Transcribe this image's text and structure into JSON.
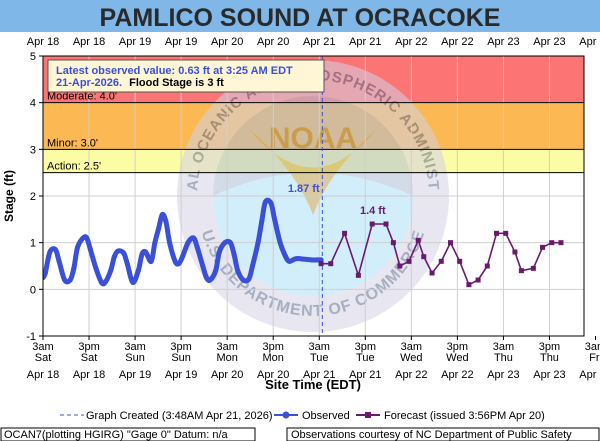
{
  "chart_data": {
    "type": "line",
    "title": "PAMLICO SOUND AT OCRACOKE",
    "xlabel": "Site Time (EDT)",
    "ylabel": "Stage (ft)",
    "ylim": [
      -1,
      5
    ],
    "y_ticks": [
      "-1",
      "0",
      "1",
      "2",
      "3",
      "4",
      "5"
    ],
    "grid": true,
    "x_day_range": [
      18.125,
      24.0
    ],
    "x_ticks": [
      {
        "day": 18.125,
        "time": "3am",
        "weekday": "Sat",
        "date": "Apr 18"
      },
      {
        "day": 18.625,
        "time": "3pm",
        "weekday": "Sat",
        "date": "Apr 18"
      },
      {
        "day": 19.125,
        "time": "3am",
        "weekday": "Sun",
        "date": "Apr 19"
      },
      {
        "day": 19.625,
        "time": "3pm",
        "weekday": "Sun",
        "date": "Apr 19"
      },
      {
        "day": 20.125,
        "time": "3am",
        "weekday": "Mon",
        "date": "Apr 20"
      },
      {
        "day": 20.625,
        "time": "3pm",
        "weekday": "Mon",
        "date": "Apr 20"
      },
      {
        "day": 21.125,
        "time": "3am",
        "weekday": "Tue",
        "date": "Apr 21"
      },
      {
        "day": 21.625,
        "time": "3pm",
        "weekday": "Tue",
        "date": "Apr 21"
      },
      {
        "day": 22.125,
        "time": "3am",
        "weekday": "Wed",
        "date": "Apr 22"
      },
      {
        "day": 22.625,
        "time": "3pm",
        "weekday": "Wed",
        "date": "Apr 22"
      },
      {
        "day": 23.125,
        "time": "3am",
        "weekday": "Thu",
        "date": "Apr 23"
      },
      {
        "day": 23.625,
        "time": "3pm",
        "weekday": "Thu",
        "date": "Apr 23"
      },
      {
        "day": 24.125,
        "time": "3am",
        "weekday": "Fri",
        "date": "Apr 24"
      }
    ],
    "flood_categories": [
      {
        "label": "Action: 2.5'",
        "from": 2.5,
        "to": 3.0,
        "color": "#fcfca4"
      },
      {
        "label": "Minor: 3.0'",
        "from": 3.0,
        "to": 4.0,
        "color": "#fcb852"
      },
      {
        "label": "Moderate: 4.0'",
        "from": 4.0,
        "to": 5.0,
        "color": "#fc7474"
      }
    ],
    "info_box": {
      "line1": "Latest observed value: 0.63 ft at 3:25 AM EDT",
      "line2": "21-Apr-2026.",
      "line2_bold": "Flood Stage is 3 ft"
    },
    "annotations": [
      {
        "text": "1.87 ft",
        "series": "observed",
        "day": 21.0,
        "value": 1.87,
        "color": "#3a50d8"
      },
      {
        "text": "1.4 ft",
        "series": "forecast",
        "day": 21.75,
        "value": 1.4,
        "color": "#6a1a6e"
      }
    ],
    "graph_created_day": 21.1583,
    "series": [
      {
        "name": "Observed",
        "color": "#3a50d8",
        "x": [
          18.125,
          18.15,
          18.2,
          18.26,
          18.3,
          18.36,
          18.42,
          18.46,
          18.5,
          18.56,
          18.6,
          18.64,
          18.7,
          18.76,
          18.8,
          18.86,
          18.9,
          18.94,
          19.0,
          19.04,
          19.1,
          19.16,
          19.2,
          19.24,
          19.3,
          19.34,
          19.38,
          19.42,
          19.46,
          19.5,
          19.56,
          19.6,
          19.64,
          19.7,
          19.76,
          19.8,
          19.86,
          19.9,
          19.94,
          20.0,
          20.04,
          20.1,
          20.16,
          20.2,
          20.24,
          20.3,
          20.36,
          20.4,
          20.46,
          20.5,
          20.54,
          20.6,
          20.64,
          20.7,
          20.76,
          20.8,
          20.86,
          20.9,
          20.94,
          21.0,
          21.04,
          21.1,
          21.145
        ],
        "y": [
          0.25,
          0.35,
          0.8,
          0.85,
          0.6,
          0.2,
          0.2,
          0.45,
          0.9,
          1.1,
          1.1,
          0.85,
          0.45,
          0.15,
          0.15,
          0.4,
          0.7,
          0.82,
          0.78,
          0.55,
          0.15,
          0.4,
          0.75,
          0.8,
          0.6,
          1.0,
          1.3,
          1.6,
          1.45,
          1.0,
          0.6,
          0.55,
          0.7,
          1.0,
          1.1,
          0.9,
          0.5,
          0.25,
          0.2,
          0.4,
          0.8,
          1.0,
          1.0,
          0.75,
          0.4,
          0.2,
          0.22,
          0.5,
          1.0,
          1.45,
          1.87,
          1.85,
          1.5,
          1.0,
          0.7,
          0.6,
          0.65,
          0.66,
          0.65,
          0.64,
          0.63,
          0.63,
          0.63
        ]
      },
      {
        "name": "Forecast",
        "color": "#6a1a6e",
        "x": [
          21.145,
          21.25,
          21.4,
          21.55,
          21.7,
          21.85,
          21.93,
          22.0,
          22.1,
          22.2,
          22.26,
          22.35,
          22.45,
          22.55,
          22.65,
          22.75,
          22.85,
          22.95,
          23.05,
          23.15,
          23.25,
          23.32,
          23.45,
          23.55,
          23.65,
          23.75
        ],
        "y": [
          0.55,
          0.55,
          1.2,
          0.3,
          1.4,
          1.4,
          1.0,
          0.5,
          0.6,
          1.05,
          0.7,
          0.35,
          0.6,
          1.0,
          0.6,
          0.1,
          0.2,
          0.5,
          1.2,
          1.2,
          0.8,
          0.4,
          0.45,
          0.9,
          1.0,
          1.0
        ]
      }
    ]
  },
  "legend": {
    "graph_created": "Graph Created (3:48AM Apr 21, 2026)",
    "observed": "Observed",
    "forecast": "Forecast (issued 3:56PM Apr 20)"
  },
  "footer": {
    "left": "OCAN7(plotting HGIRG) \"Gage 0\" Datum: n/a",
    "right": "Observations courtesy of NC Department of Public Safety"
  },
  "watermark": {
    "ring_top": "NATIONAL OCEANIC AND ATMOSPHERIC ADMINISTRATION",
    "ring_bottom": "U.S. DEPARTMENT OF COMMERCE",
    "center": "NOAA"
  },
  "colors": {
    "title_bg": "#7fb7e8",
    "title_text": "#2a2a2a",
    "plot_bg": "#ffffff",
    "frame": "#000000",
    "grid": "#cfcfcf",
    "graph_created_line": "#3a50d8"
  }
}
